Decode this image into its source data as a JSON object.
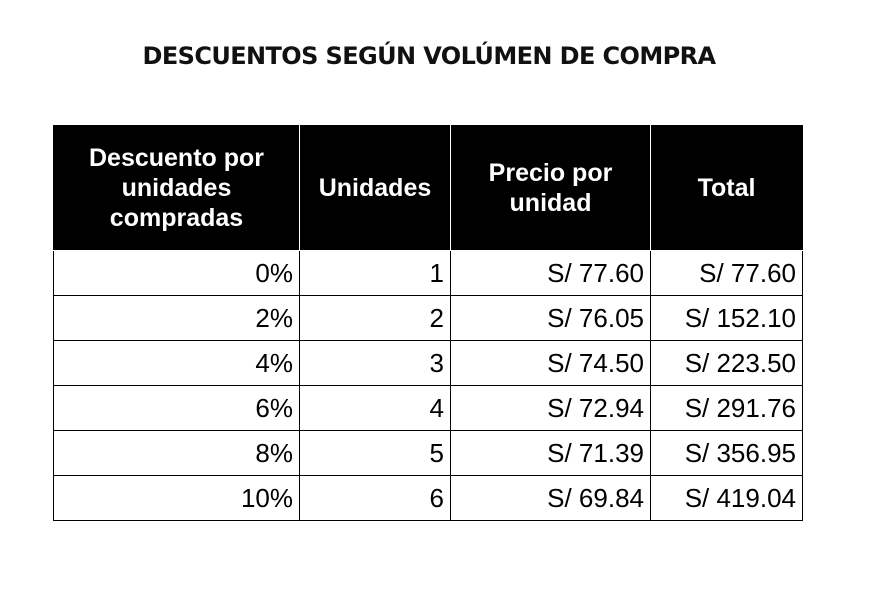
{
  "title": "DESCUENTOS SEGÚN VOLÚMEN DE COMPRA",
  "table": {
    "headers": [
      "Descuento por unidades compradas",
      "Unidades",
      "Precio por unidad",
      "Total"
    ],
    "rows": [
      [
        "0%",
        "1",
        "S/ 77.60",
        "S/ 77.60"
      ],
      [
        "2%",
        "2",
        "S/ 76.05",
        "S/ 152.10"
      ],
      [
        "4%",
        "3",
        "S/ 74.50",
        "S/ 223.50"
      ],
      [
        "6%",
        "4",
        "S/ 72.94",
        "S/ 291.76"
      ],
      [
        "8%",
        "5",
        "S/ 71.39",
        "S/ 356.95"
      ],
      [
        "10%",
        "6",
        "S/ 69.84",
        "S/ 419.04"
      ]
    ]
  },
  "colors": {
    "header_background": "#000000",
    "header_text": "#ffffff",
    "cell_border": "#000000"
  }
}
